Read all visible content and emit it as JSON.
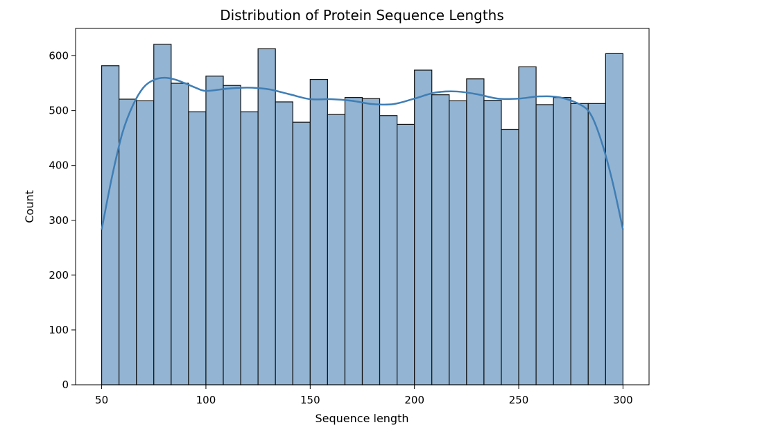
{
  "chart_data": {
    "type": "bar",
    "title": "Distribution of Protein Sequence Lengths",
    "xlabel": "Sequence length",
    "ylabel": "Count",
    "xlim": [
      37.5,
      312.5
    ],
    "ylim": [
      0,
      650
    ],
    "xticks": [
      50,
      100,
      150,
      200,
      250,
      300
    ],
    "yticks": [
      0,
      100,
      200,
      300,
      400,
      500,
      600
    ],
    "bin_edges": [
      50,
      58.33,
      66.67,
      75,
      83.33,
      91.67,
      100,
      108.33,
      116.67,
      125,
      133.33,
      141.67,
      150,
      158.33,
      166.67,
      175,
      183.33,
      191.67,
      200,
      208.33,
      216.67,
      225,
      233.33,
      241.67,
      250,
      258.33,
      266.67,
      275,
      283.33,
      291.67,
      300
    ],
    "values": [
      582,
      521,
      518,
      621,
      550,
      498,
      563,
      546,
      498,
      613,
      516,
      479,
      557,
      493,
      524,
      522,
      491,
      475,
      574,
      529,
      518,
      558,
      519,
      466,
      580,
      511,
      524,
      513,
      513,
      604
    ],
    "kde_curve": {
      "x": [
        50,
        55,
        60,
        65,
        70,
        75,
        80,
        85,
        90,
        95,
        100,
        110,
        120,
        130,
        140,
        150,
        160,
        170,
        180,
        190,
        200,
        210,
        220,
        230,
        240,
        250,
        260,
        270,
        280,
        285,
        290,
        295,
        300
      ],
      "y": [
        283,
        380,
        460,
        510,
        542,
        556,
        560,
        557,
        550,
        542,
        536,
        540,
        542,
        539,
        530,
        521,
        521,
        518,
        512,
        512,
        522,
        533,
        535,
        530,
        522,
        522,
        526,
        524,
        510,
        490,
        440,
        370,
        283
      ]
    },
    "colors": {
      "bar_fill": "#93b4d2",
      "bar_edge": "#111111",
      "kde_line": "#3f7eb5"
    },
    "grid": false,
    "legend": "none"
  }
}
